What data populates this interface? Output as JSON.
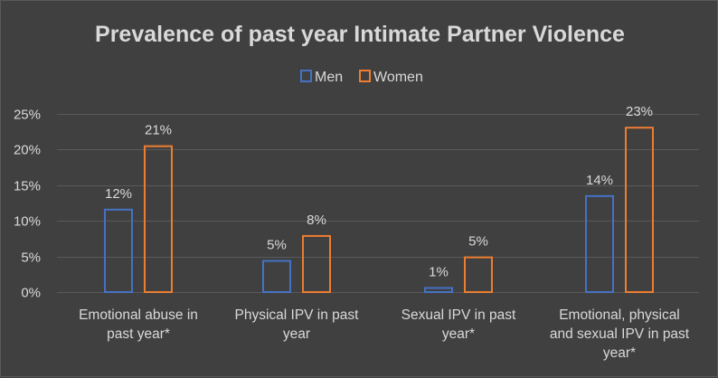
{
  "chart_data": {
    "type": "bar",
    "title": "Prevalence of past year Intimate Partner Violence",
    "categories": [
      [
        "Emotional abuse in",
        "past year*"
      ],
      [
        "Physical IPV in past",
        "year"
      ],
      [
        "Sexual IPV  in past",
        "year*"
      ],
      [
        "Emotional, physical",
        "and sexual IPV in past",
        "year*"
      ]
    ],
    "series": [
      {
        "name": "Men",
        "color": "#4472c4",
        "values": [
          0.117,
          0.045,
          0.007,
          0.136
        ],
        "labels": [
          "12%",
          "5%",
          "1%",
          "14%"
        ]
      },
      {
        "name": "Women",
        "color": "#ed7d31",
        "values": [
          0.206,
          0.08,
          0.05,
          0.232
        ],
        "labels": [
          "21%",
          "8%",
          "5%",
          "23%"
        ]
      }
    ],
    "y_ticks": [
      "0%",
      "5%",
      "10%",
      "15%",
      "20%",
      "25%"
    ],
    "ylim": [
      0,
      0.25
    ],
    "gridlines": true,
    "legend_position": "top-center"
  }
}
